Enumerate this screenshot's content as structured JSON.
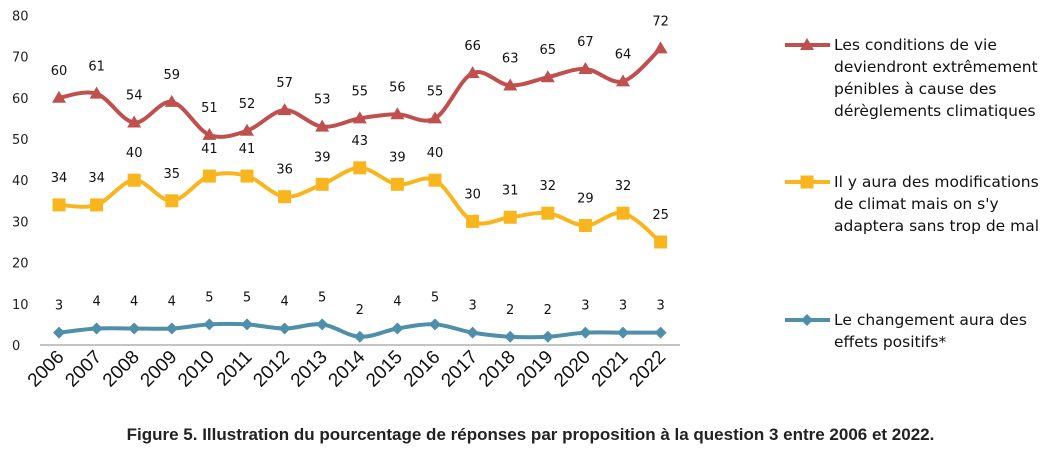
{
  "caption": "Figure 5. Illustration du pourcentage de réponses par proposition à la question 3 entre 2006 et 2022.",
  "chart_data": {
    "type": "line",
    "categories": [
      "2006",
      "2007",
      "2008",
      "2009",
      "2010",
      "2011",
      "2012",
      "2013",
      "2014",
      "2015",
      "2016",
      "2017",
      "2018",
      "2019",
      "2020",
      "2021",
      "2022"
    ],
    "ylim": [
      0,
      80
    ],
    "yticks": [
      0,
      10,
      20,
      30,
      40,
      50,
      60,
      70,
      80
    ],
    "grid": false,
    "legend_position": "right",
    "series": [
      {
        "name_lines": [
          "Les conditions de vie",
          "deviendront extrêmement",
          "pénibles à cause des",
          "dérèglements climatiques"
        ],
        "marker": "triangle",
        "color": "#C0504D",
        "values": [
          60,
          61,
          54,
          59,
          51,
          52,
          57,
          53,
          55,
          56,
          55,
          66,
          63,
          65,
          67,
          64,
          72
        ]
      },
      {
        "name_lines": [
          "Il y aura des modifications",
          "de climat mais on s'y",
          "adaptera sans trop de mal"
        ],
        "marker": "square",
        "color": "#F9B51E",
        "values": [
          34,
          34,
          40,
          35,
          41,
          41,
          36,
          39,
          43,
          39,
          40,
          30,
          31,
          32,
          29,
          32,
          25
        ]
      },
      {
        "name_lines": [
          "Le changement aura des",
          "effets positifs*"
        ],
        "marker": "diamond",
        "color": "#4F8FAA",
        "values": [
          3,
          4,
          4,
          4,
          5,
          5,
          4,
          5,
          2,
          4,
          5,
          3,
          2,
          2,
          3,
          3,
          3
        ]
      }
    ]
  }
}
